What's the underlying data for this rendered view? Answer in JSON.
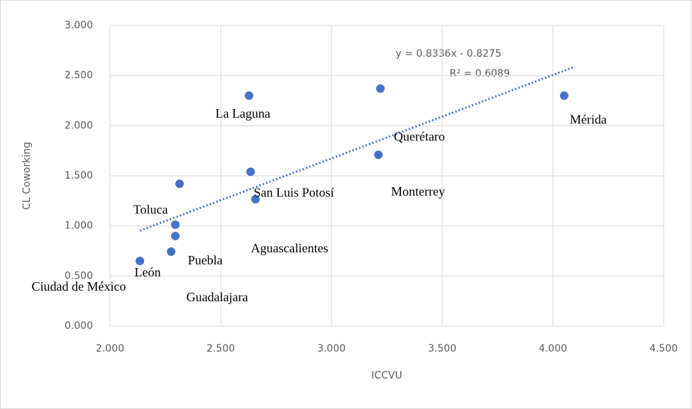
{
  "chart_data": {
    "type": "scatter",
    "x_label": "ICCVU",
    "y_label": "CL Coworking",
    "xlim": [
      2.0,
      4.5
    ],
    "ylim": [
      0.0,
      3.0
    ],
    "xticks": [
      {
        "value": 2.0,
        "label": "2.000"
      },
      {
        "value": 2.5,
        "label": "2.500"
      },
      {
        "value": 3.0,
        "label": "3.000"
      },
      {
        "value": 3.5,
        "label": "3.500"
      },
      {
        "value": 4.0,
        "label": "4.000"
      },
      {
        "value": 4.5,
        "label": "4.500"
      }
    ],
    "yticks": [
      {
        "value": 0.0,
        "label": "0.000"
      },
      {
        "value": 0.5,
        "label": "0.500"
      },
      {
        "value": 1.0,
        "label": "1.000"
      },
      {
        "value": 1.5,
        "label": "1.500"
      },
      {
        "value": 2.0,
        "label": "2.000"
      },
      {
        "value": 2.5,
        "label": "2.500"
      },
      {
        "value": 3.0,
        "label": "3.000"
      }
    ],
    "grid": true,
    "color": "#4472c4",
    "x": [
      2.135,
      2.276,
      2.295,
      2.295,
      2.314,
      2.628,
      2.635,
      2.657,
      3.221,
      3.212,
      4.051
    ],
    "values": [
      0.65,
      0.743,
      0.899,
      1.012,
      1.42,
      2.3,
      1.54,
      1.266,
      2.37,
      1.71,
      2.3
    ],
    "trendline": {
      "slope": 0.8336,
      "intercept": -0.8275,
      "x_range": [
        2.135,
        4.1
      ],
      "equation": "y = 0.8336x - 0.8275",
      "r2": "R² = 0.6089",
      "color": "#4472c4"
    },
    "annotations": [
      {
        "text": "La Laguna",
        "x": 2.6,
        "y": 2.11
      },
      {
        "text": "Mérida",
        "x": 4.16,
        "y": 2.05
      },
      {
        "text": "Querétaro",
        "x": 3.397,
        "y": 1.88
      },
      {
        "text": "Monterrey",
        "x": 3.391,
        "y": 1.33
      },
      {
        "text": "San Luis Potosí",
        "x": 2.83,
        "y": 1.32
      },
      {
        "text": "Toluca",
        "x": 2.183,
        "y": 1.15
      },
      {
        "text": "Aguascalientes",
        "x": 2.811,
        "y": 0.764
      },
      {
        "text": "Puebla",
        "x": 2.43,
        "y": 0.644
      },
      {
        "text": "León",
        "x": 2.17,
        "y": 0.524
      },
      {
        "text": "Ciudad de México",
        "x": 1.859,
        "y": 0.382
      },
      {
        "text": "Guadalajara",
        "x": 2.484,
        "y": 0.276
      }
    ]
  }
}
